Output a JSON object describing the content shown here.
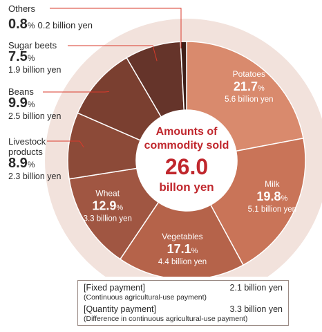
{
  "center": {
    "label_line1": "Amounts of",
    "label_line2": "commodity sold",
    "total": "26.0",
    "unit": "billon yen"
  },
  "colors": {
    "outer_ring": "#f2e2dc",
    "center_fill": "#ffffff",
    "center_text": "#c0272d",
    "slice_text": "#ffffff",
    "label_text": "#2a2a2a",
    "leader": "#d93a2b"
  },
  "chart_data": {
    "type": "pie",
    "title": "",
    "total_label": "26.0 billon yen",
    "slices": [
      {
        "label": "Potatoes",
        "percent": 21.7,
        "pct_text": "21.7",
        "amount": 5.6,
        "amount_text": "5.6 billion yen",
        "color": "#d98a6d"
      },
      {
        "label": "Milk",
        "percent": 19.8,
        "pct_text": "19.8",
        "amount": 5.1,
        "amount_text": "5.1 billion yen",
        "color": "#c97458"
      },
      {
        "label": "Vegetables",
        "percent": 17.1,
        "pct_text": "17.1",
        "amount": 4.4,
        "amount_text": "4.4 billion yen",
        "color": "#b5634a"
      },
      {
        "label": "Wheat",
        "percent": 12.9,
        "pct_text": "12.9",
        "amount": 3.3,
        "amount_text": "3.3 billion yen",
        "color": "#a05642"
      },
      {
        "label": "Livestock products",
        "label_lines": [
          "Livestock",
          "products"
        ],
        "percent": 8.9,
        "pct_text": "8.9",
        "amount": 2.3,
        "amount_text": "2.3 billion yen",
        "color": "#8c4a38"
      },
      {
        "label": "Beans",
        "percent": 9.9,
        "pct_text": "9.9",
        "amount": 2.5,
        "amount_text": "2.5 billion yen",
        "color": "#7a3f30"
      },
      {
        "label": "Sugar beets",
        "percent": 7.5,
        "pct_text": "7.5",
        "amount": 1.9,
        "amount_text": "1.9 billion yen",
        "color": "#65342a"
      },
      {
        "label": "Others",
        "percent": 0.8,
        "pct_text": "0.8",
        "amount": 0.2,
        "amount_text": "0.2 billion yen",
        "color": "#3f1f18"
      }
    ],
    "pct_sign": "%"
  },
  "payments": {
    "fixed_label": "[Fixed payment]",
    "fixed_value": "2.1 billion yen",
    "fixed_sub": "(Continuous agricultural-use payment)",
    "quantity_label": "[Quantity payment]",
    "quantity_value": "3.3 billion yen",
    "quantity_sub": "(Difference in continuous agricultural-use payment)"
  }
}
